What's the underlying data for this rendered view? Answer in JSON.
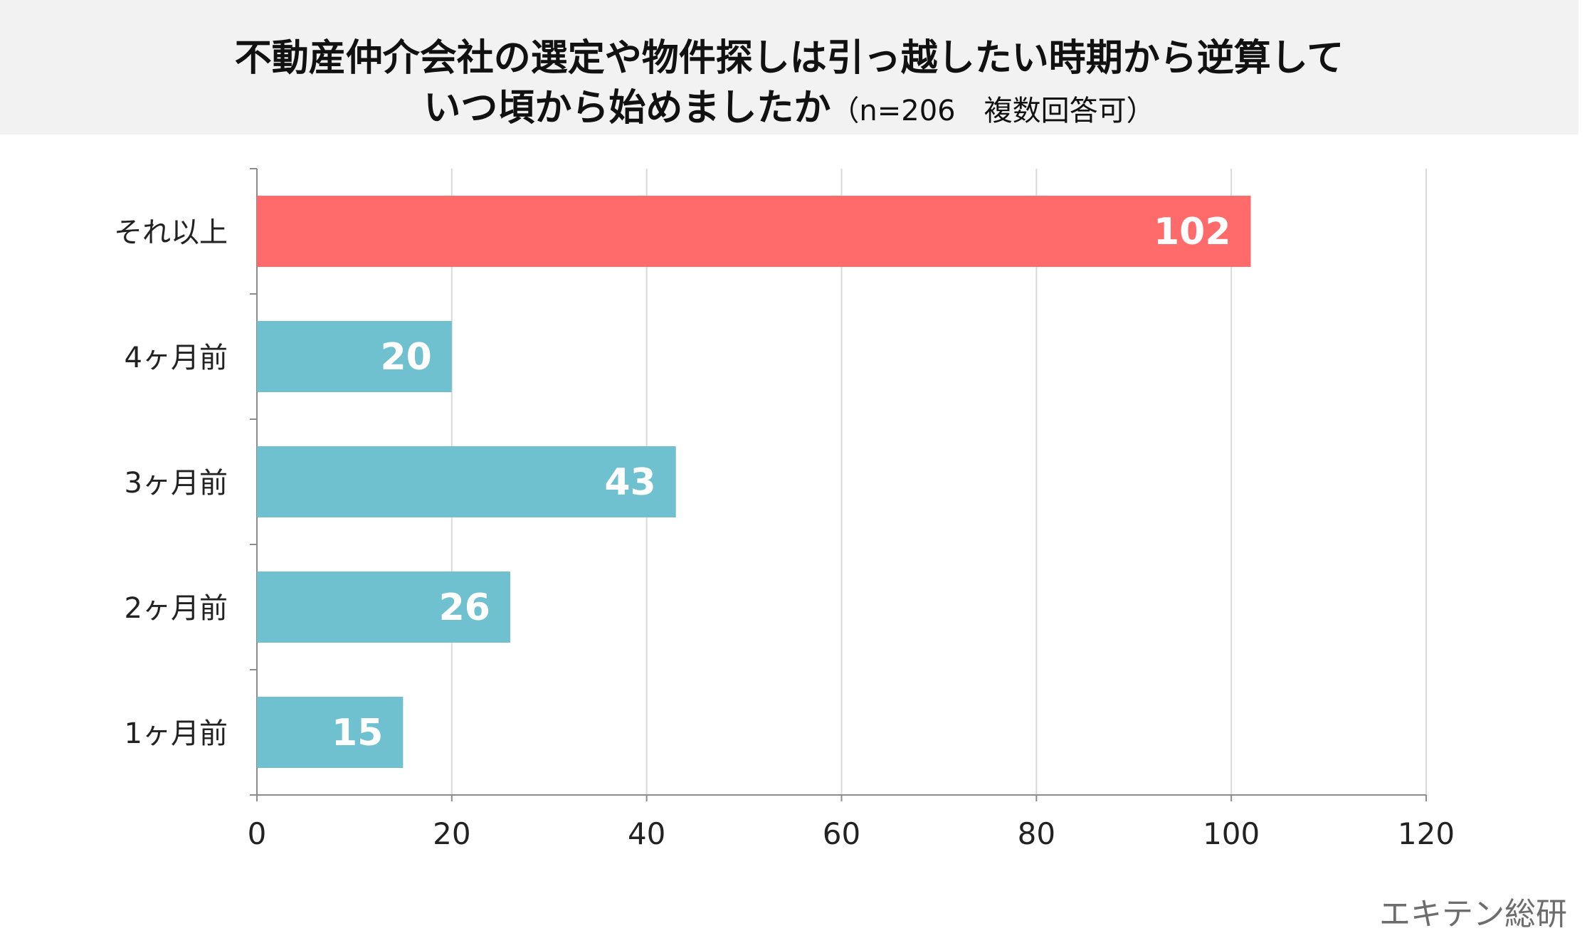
{
  "title": {
    "line1": "不動産仲介会社の選定や物件探しは引っ越したい時期から逆算して",
    "line2_main": "いつ頃から始めましたか",
    "line2_note": "（n=206　複数回答可）"
  },
  "source": "エキテン総研",
  "colors": {
    "highlight_bar": "#ff6b6b",
    "normal_bar": "#70c1cf",
    "bar_label": "#ffffff",
    "category_label": "#222222",
    "tick_label": "#222222",
    "grid": "#d9d9d9",
    "axis": "#8c8c8c",
    "title_band": "#f2f2f2"
  },
  "chart_data": {
    "type": "bar",
    "orientation": "horizontal",
    "categories": [
      "それ以上",
      "4ヶ月前",
      "3ヶ月前",
      "2ヶ月前",
      "1ヶ月前"
    ],
    "values": [
      102,
      20,
      43,
      26,
      15
    ],
    "highlight_category": "それ以上",
    "xlim": [
      0,
      120
    ],
    "xticks": [
      0,
      20,
      40,
      60,
      80,
      100,
      120
    ],
    "grid": true,
    "data_labels": true,
    "legend": "none"
  }
}
